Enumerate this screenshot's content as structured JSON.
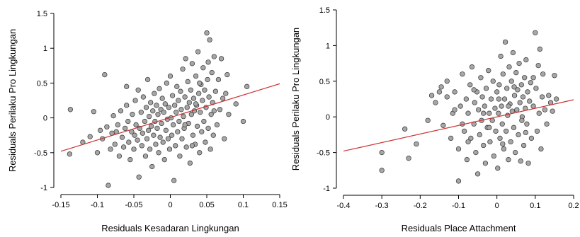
{
  "chart_data": [
    {
      "type": "scatter",
      "xlabel": "Residuals Kesadaran Lingkungan",
      "ylabel": "Residuals Perilaku Pro Lingkungan",
      "xlim": [
        -0.15,
        0.15
      ],
      "ylim": [
        -1,
        1.5
      ],
      "xticks": [
        -0.15,
        -0.1,
        -0.05,
        0,
        0.05,
        0.1,
        0.15
      ],
      "xtick_labels": [
        "-0.15",
        "-0.1",
        "-0.05",
        "0",
        "0.05",
        "0.1",
        "0.15"
      ],
      "yticks": [
        -1,
        -0.5,
        0,
        0.5,
        1,
        1.5
      ],
      "ytick_labels": [
        "-1",
        "-0.5",
        "0",
        "0.5",
        "1",
        "1.5"
      ],
      "grid": false,
      "point_color": "#a6a6a6",
      "line_color": "#cc3333",
      "fit_line": {
        "x": [
          -0.15,
          0.15
        ],
        "y": [
          -0.48,
          0.49
        ]
      },
      "points": [
        [
          -0.137,
          0.12
        ],
        [
          -0.138,
          -0.52
        ],
        [
          -0.12,
          -0.35
        ],
        [
          -0.11,
          -0.27
        ],
        [
          -0.105,
          0.09
        ],
        [
          -0.1,
          -0.5
        ],
        [
          -0.096,
          -0.18
        ],
        [
          -0.093,
          -0.3
        ],
        [
          -0.09,
          0.62
        ],
        [
          -0.087,
          -0.13
        ],
        [
          -0.085,
          -0.97
        ],
        [
          -0.082,
          -0.45
        ],
        [
          -0.08,
          -0.22
        ],
        [
          -0.078,
          0.03
        ],
        [
          -0.076,
          -0.38
        ],
        [
          -0.074,
          -0.2
        ],
        [
          -0.072,
          -0.1
        ],
        [
          -0.07,
          -0.55
        ],
        [
          -0.068,
          0.1
        ],
        [
          -0.066,
          -0.28
        ],
        [
          -0.064,
          -0.42
        ],
        [
          -0.062,
          -0.15
        ],
        [
          -0.06,
          0.18
        ],
        [
          -0.058,
          -0.05
        ],
        [
          -0.057,
          -0.35
        ],
        [
          -0.055,
          -0.6
        ],
        [
          -0.053,
          -0.2
        ],
        [
          -0.052,
          0.05
        ],
        [
          -0.05,
          -0.45
        ],
        [
          -0.049,
          -0.25
        ],
        [
          -0.048,
          0.25
        ],
        [
          -0.047,
          -0.1
        ],
        [
          -0.045,
          -0.32
        ],
        [
          -0.044,
          0.4
        ],
        [
          -0.043,
          -0.85
        ],
        [
          -0.042,
          -0.15
        ],
        [
          -0.04,
          0.08
        ],
        [
          -0.039,
          -0.4
        ],
        [
          -0.038,
          -0.22
        ],
        [
          -0.037,
          0.3
        ],
        [
          -0.035,
          -0.05
        ],
        [
          -0.034,
          -0.55
        ],
        [
          -0.033,
          0.15
        ],
        [
          -0.032,
          -0.3
        ],
        [
          -0.031,
          0.55
        ],
        [
          -0.03,
          -0.18
        ],
        [
          -0.029,
          0.02
        ],
        [
          -0.028,
          -0.45
        ],
        [
          -0.027,
          0.22
        ],
        [
          -0.026,
          -0.12
        ],
        [
          -0.025,
          -0.7
        ],
        [
          -0.024,
          0.1
        ],
        [
          -0.023,
          -0.25
        ],
        [
          -0.022,
          0.35
        ],
        [
          -0.021,
          -0.05
        ],
        [
          -0.02,
          -0.38
        ],
        [
          -0.019,
          0.18
        ],
        [
          -0.018,
          -0.15
        ],
        [
          -0.017,
          0.05
        ],
        [
          -0.016,
          -0.5
        ],
        [
          -0.015,
          0.42
        ],
        [
          -0.014,
          -0.28
        ],
        [
          -0.013,
          0.12
        ],
        [
          -0.012,
          -0.08
        ],
        [
          -0.011,
          0.28
        ],
        [
          -0.01,
          -0.35
        ],
        [
          -0.009,
          0.08
        ],
        [
          -0.008,
          -0.6
        ],
        [
          -0.007,
          0.2
        ],
        [
          -0.006,
          -0.18
        ],
        [
          -0.005,
          0.5
        ],
        [
          -0.004,
          -0.02
        ],
        [
          -0.003,
          -0.3
        ],
        [
          -0.002,
          0.15
        ],
        [
          -0.001,
          -0.45
        ],
        [
          0.0,
          0.6
        ],
        [
          0.001,
          0.0
        ],
        [
          0.002,
          -0.25
        ],
        [
          0.003,
          0.32
        ],
        [
          0.004,
          -0.1
        ],
        [
          0.005,
          -0.9
        ],
        [
          0.006,
          0.18
        ],
        [
          0.007,
          -0.4
        ],
        [
          0.008,
          0.08
        ],
        [
          0.009,
          0.45
        ],
        [
          0.01,
          -0.2
        ],
        [
          0.011,
          0.25
        ],
        [
          0.012,
          -0.05
        ],
        [
          0.013,
          -0.55
        ],
        [
          0.014,
          0.38
        ],
        [
          0.015,
          0.12
        ],
        [
          0.016,
          -0.3
        ],
        [
          0.017,
          0.7
        ],
        [
          0.018,
          0.02
        ],
        [
          0.019,
          -0.15
        ],
        [
          0.02,
          0.3
        ],
        [
          0.021,
          0.85
        ],
        [
          0.022,
          -0.42
        ],
        [
          0.023,
          0.15
        ],
        [
          0.024,
          0.52
        ],
        [
          0.025,
          -0.08
        ],
        [
          0.026,
          0.22
        ],
        [
          0.027,
          -0.65
        ],
        [
          0.028,
          0.4
        ],
        [
          0.029,
          0.05
        ],
        [
          0.03,
          0.78
        ],
        [
          0.031,
          -0.25
        ],
        [
          0.032,
          0.28
        ],
        [
          0.033,
          0.1
        ],
        [
          0.034,
          -0.38
        ],
        [
          0.035,
          0.6
        ],
        [
          0.036,
          0.18
        ],
        [
          0.037,
          -0.12
        ],
        [
          0.038,
          0.95
        ],
        [
          0.039,
          0.35
        ],
        [
          0.04,
          -0.5
        ],
        [
          0.041,
          0.08
        ],
        [
          0.042,
          0.48
        ],
        [
          0.043,
          -0.2
        ],
        [
          0.044,
          0.25
        ],
        [
          0.045,
          0.72
        ],
        [
          0.046,
          -0.05
        ],
        [
          0.047,
          0.4
        ],
        [
          0.048,
          -0.35
        ],
        [
          0.049,
          0.15
        ],
        [
          0.05,
          1.22
        ],
        [
          0.051,
          0.55
        ],
        [
          0.052,
          -0.15
        ],
        [
          0.053,
          0.3
        ],
        [
          0.054,
          1.12
        ],
        [
          0.055,
          -0.45
        ],
        [
          0.056,
          0.05
        ],
        [
          0.057,
          0.65
        ],
        [
          0.058,
          0.22
        ],
        [
          0.059,
          -0.25
        ],
        [
          0.06,
          0.88
        ],
        [
          0.062,
          0.38
        ],
        [
          0.064,
          -0.1
        ],
        [
          0.066,
          0.55
        ],
        [
          0.068,
          0.12
        ],
        [
          0.07,
          0.85
        ],
        [
          0.072,
          0.28
        ],
        [
          0.074,
          -0.3
        ],
        [
          0.076,
          0.35
        ],
        [
          0.078,
          0.62
        ],
        [
          0.08,
          0.05
        ],
        [
          0.09,
          0.2
        ],
        [
          0.1,
          -0.05
        ],
        [
          0.105,
          0.45
        ],
        [
          0.052,
          0.8
        ],
        [
          0.04,
          0.5
        ],
        [
          0.03,
          -0.4
        ],
        [
          0.06,
          0.1
        ],
        [
          -0.06,
          0.45
        ],
        [
          0.02,
          -0.1
        ],
        [
          0.035,
          0.2
        ]
      ]
    },
    {
      "type": "scatter",
      "xlabel": "Residuals Place Attachment",
      "ylabel": "Residuals Perilaku Pro Lingkungan",
      "xlim": [
        -0.4,
        0.2
      ],
      "ylim": [
        -1,
        1.5
      ],
      "xticks": [
        -0.4,
        -0.3,
        -0.2,
        -0.1,
        0,
        0.1,
        0.2
      ],
      "xtick_labels": [
        "-0.4",
        "-0.3",
        "-0.2",
        "-0.1",
        "0",
        "0.1",
        "0.2"
      ],
      "yticks": [
        -1,
        -0.5,
        0,
        0.5,
        1,
        1.5
      ],
      "ytick_labels": [
        "-1",
        "-0.5",
        "0",
        "0.5",
        "1",
        "1.5"
      ],
      "grid": false,
      "point_color": "#a6a6a6",
      "line_color": "#cc3333",
      "fit_line": {
        "x": [
          -0.4,
          0.2
        ],
        "y": [
          -0.48,
          0.24
        ]
      },
      "points": [
        [
          -0.3,
          -0.5
        ],
        [
          -0.3,
          -0.75
        ],
        [
          -0.24,
          -0.17
        ],
        [
          -0.23,
          -0.58
        ],
        [
          -0.21,
          -0.38
        ],
        [
          -0.18,
          -0.05
        ],
        [
          -0.17,
          0.3
        ],
        [
          -0.16,
          0.2
        ],
        [
          -0.15,
          0.35
        ],
        [
          -0.14,
          -0.12
        ],
        [
          -0.13,
          0.28
        ],
        [
          -0.13,
          0.5
        ],
        [
          -0.12,
          -0.3
        ],
        [
          -0.115,
          0.05
        ],
        [
          -0.11,
          0.35
        ],
        [
          -0.1,
          -0.45
        ],
        [
          -0.1,
          -0.9
        ],
        [
          -0.095,
          0.15
        ],
        [
          -0.09,
          0.6
        ],
        [
          -0.085,
          -0.2
        ],
        [
          -0.08,
          0.25
        ],
        [
          -0.078,
          -0.6
        ],
        [
          -0.075,
          0.05
        ],
        [
          -0.07,
          0.45
        ],
        [
          -0.068,
          -0.3
        ],
        [
          -0.065,
          0.7
        ],
        [
          -0.06,
          -0.1
        ],
        [
          -0.058,
          0.2
        ],
        [
          -0.055,
          -0.5
        ],
        [
          -0.052,
          0.35
        ],
        [
          -0.05,
          -0.8
        ],
        [
          -0.048,
          0.1
        ],
        [
          -0.045,
          -0.25
        ],
        [
          -0.042,
          0.55
        ],
        [
          -0.04,
          -0.05
        ],
        [
          -0.038,
          0.28
        ],
        [
          -0.035,
          -0.4
        ],
        [
          -0.032,
          0.15
        ],
        [
          -0.03,
          -0.65
        ],
        [
          -0.028,
          0.4
        ],
        [
          -0.025,
          -0.15
        ],
        [
          -0.022,
          0.65
        ],
        [
          -0.02,
          0.05
        ],
        [
          -0.018,
          -0.35
        ],
        [
          -0.015,
          0.25
        ],
        [
          -0.012,
          -0.05
        ],
        [
          -0.01,
          0.5
        ],
        [
          -0.008,
          -0.55
        ],
        [
          -0.005,
          0.12
        ],
        [
          -0.003,
          -0.2
        ],
        [
          0.0,
          0.35
        ],
        [
          0.002,
          -0.72
        ],
        [
          0.004,
          0.05
        ],
        [
          0.006,
          0.45
        ],
        [
          0.008,
          -0.3
        ],
        [
          0.01,
          0.85
        ],
        [
          0.012,
          0.15
        ],
        [
          0.014,
          -0.1
        ],
        [
          0.016,
          0.6
        ],
        [
          0.018,
          -0.45
        ],
        [
          0.02,
          0.25
        ],
        [
          0.022,
          1.05
        ],
        [
          0.024,
          -0.2
        ],
        [
          0.026,
          0.4
        ],
        [
          0.028,
          0.02
        ],
        [
          0.03,
          -0.6
        ],
        [
          0.032,
          0.7
        ],
        [
          0.034,
          0.18
        ],
        [
          0.036,
          -0.35
        ],
        [
          0.038,
          0.5
        ],
        [
          0.04,
          0.08
        ],
        [
          0.042,
          0.9
        ],
        [
          0.044,
          -0.15
        ],
        [
          0.046,
          0.3
        ],
        [
          0.048,
          -0.5
        ],
        [
          0.05,
          0.62
        ],
        [
          0.052,
          0.1
        ],
        [
          0.054,
          0.38
        ],
        [
          0.056,
          -0.25
        ],
        [
          0.058,
          0.75
        ],
        [
          0.06,
          0.2
        ],
        [
          0.062,
          -0.62
        ],
        [
          0.064,
          0.45
        ],
        [
          0.066,
          0.0
        ],
        [
          0.068,
          0.28
        ],
        [
          0.07,
          -0.4
        ],
        [
          0.072,
          0.55
        ],
        [
          0.074,
          0.12
        ],
        [
          0.076,
          0.8
        ],
        [
          0.078,
          -0.1
        ],
        [
          0.08,
          0.35
        ],
        [
          0.082,
          -0.65
        ],
        [
          0.085,
          0.22
        ],
        [
          0.088,
          0.48
        ],
        [
          0.09,
          -0.3
        ],
        [
          0.095,
          0.15
        ],
        [
          0.1,
          1.18
        ],
        [
          0.102,
          0.4
        ],
        [
          0.105,
          -0.2
        ],
        [
          0.108,
          0.72
        ],
        [
          0.11,
          0.05
        ],
        [
          0.112,
          0.95
        ],
        [
          0.115,
          -0.45
        ],
        [
          0.118,
          0.28
        ],
        [
          0.12,
          0.6
        ],
        [
          0.125,
          0.1
        ],
        [
          0.13,
          -0.1
        ],
        [
          0.135,
          0.3
        ],
        [
          0.14,
          0.2
        ],
        [
          0.145,
          0.08
        ],
        [
          0.15,
          0.58
        ],
        [
          0.155,
          0.25
        ],
        [
          -0.145,
          0.42
        ],
        [
          -0.06,
          0.38
        ],
        [
          -0.02,
          -0.15
        ],
        [
          0.03,
          0.15
        ],
        [
          0.065,
          -0.05
        ],
        [
          -0.09,
          -0.1
        ],
        [
          0.005,
          0.25
        ],
        [
          -0.035,
          0.05
        ],
        [
          0.045,
          0.42
        ],
        [
          0.075,
          -0.22
        ],
        [
          -0.075,
          -0.35
        ],
        [
          0.015,
          -0.38
        ],
        [
          0.095,
          0.55
        ],
        [
          -0.11,
          0.1
        ]
      ]
    }
  ]
}
